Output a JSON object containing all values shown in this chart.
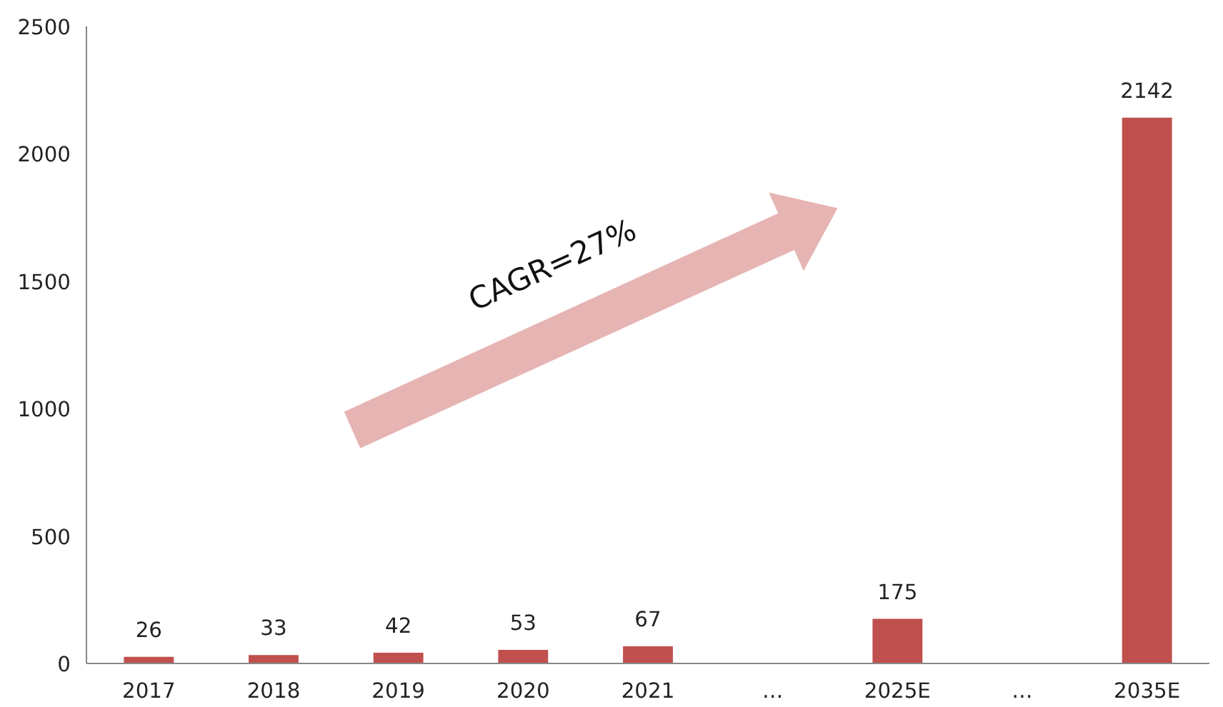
{
  "chart_data": {
    "type": "bar",
    "categories": [
      "2017",
      "2018",
      "2019",
      "2020",
      "2021",
      "…",
      "2025E",
      "…",
      "2035E"
    ],
    "values": [
      26,
      33,
      42,
      53,
      67,
      null,
      175,
      null,
      2142
    ],
    "color": "#c0504d",
    "data_labels": true,
    "ylim": [
      0,
      2500
    ],
    "yticks": [
      0,
      500,
      1000,
      1500,
      2000,
      2500
    ],
    "grid": false,
    "annotations": [
      "CAGR=27%"
    ]
  }
}
